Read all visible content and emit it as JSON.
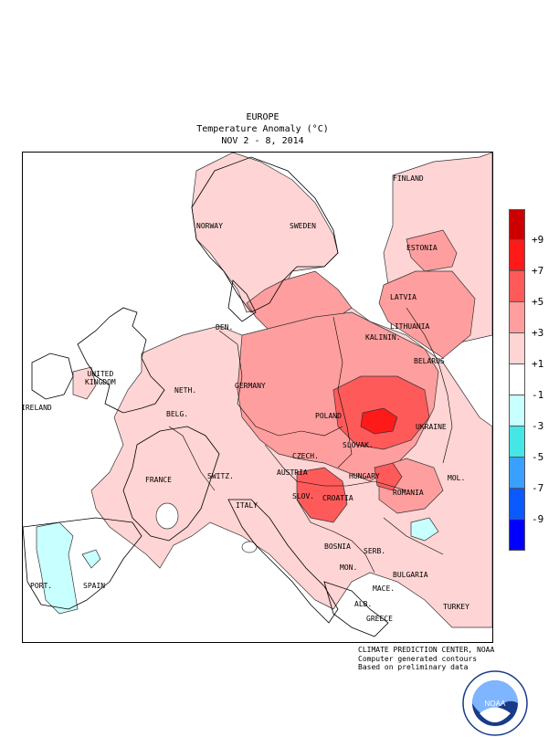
{
  "title": {
    "region": "EUROPE",
    "variable": "Temperature Anomaly (°C)",
    "period": "NOV 2 - 8, 2014"
  },
  "legend": {
    "labels": [
      "+9",
      "+7",
      "+5",
      "+3",
      "+1",
      "-1",
      "-3",
      "-5",
      "-7",
      "-9"
    ],
    "colors": [
      "#cc0000",
      "#ff1a1a",
      "#ff5a5a",
      "#ff9e9e",
      "#ffd4d4",
      "#ffffff",
      "#c8ffff",
      "#44e6e6",
      "#3aa0ff",
      "#0a5aff",
      "#0000ff"
    ],
    "ranges": [
      "> +9",
      "+7 to +9",
      "+5 to +7",
      "+3 to +5",
      "+1 to +3",
      "-1 to +1",
      "-3 to -1",
      "-5 to -3",
      "-7 to -5",
      "-9 to -7",
      "< -9"
    ]
  },
  "country_labels": [
    {
      "name": "FINLAND"
    },
    {
      "name": "NORWAY"
    },
    {
      "name": "SWEDEN"
    },
    {
      "name": "ESTONIA"
    },
    {
      "name": "LATVIA"
    },
    {
      "name": "LITHUANIA"
    },
    {
      "name": "KALININ."
    },
    {
      "name": "DEN."
    },
    {
      "name": "BELARUS"
    },
    {
      "name": "UNITED\nKINGDOM"
    },
    {
      "name": "IRELAND"
    },
    {
      "name": "NETH."
    },
    {
      "name": "GERMANY"
    },
    {
      "name": "POLAND"
    },
    {
      "name": "BELG."
    },
    {
      "name": "CZECH."
    },
    {
      "name": "UKRAINE"
    },
    {
      "name": "SLOVAK."
    },
    {
      "name": "FRANCE"
    },
    {
      "name": "SWITZ."
    },
    {
      "name": "AUSTRIA"
    },
    {
      "name": "HUNGARY"
    },
    {
      "name": "MOL."
    },
    {
      "name": "SLOV."
    },
    {
      "name": "CROATIA"
    },
    {
      "name": "ROMANIA"
    },
    {
      "name": "ITALY"
    },
    {
      "name": "BOSNIA"
    },
    {
      "name": "SERB."
    },
    {
      "name": "MON."
    },
    {
      "name": "BULGARIA"
    },
    {
      "name": "PORT."
    },
    {
      "name": "SPAIN"
    },
    {
      "name": "MACE."
    },
    {
      "name": "ALB."
    },
    {
      "name": "GREECE"
    },
    {
      "name": "TURKEY"
    }
  ],
  "credits": {
    "line1": "CLIMATE PREDICTION CENTER, NOAA",
    "line2": "Computer generated contours",
    "line3": "Based on preliminary data"
  },
  "logo": {
    "text": "NOAA",
    "ring_text": "NATIONAL OCEANIC AND ATMOSPHERIC ADMINISTRATION · U.S. DEPARTMENT OF COMMERCE"
  }
}
